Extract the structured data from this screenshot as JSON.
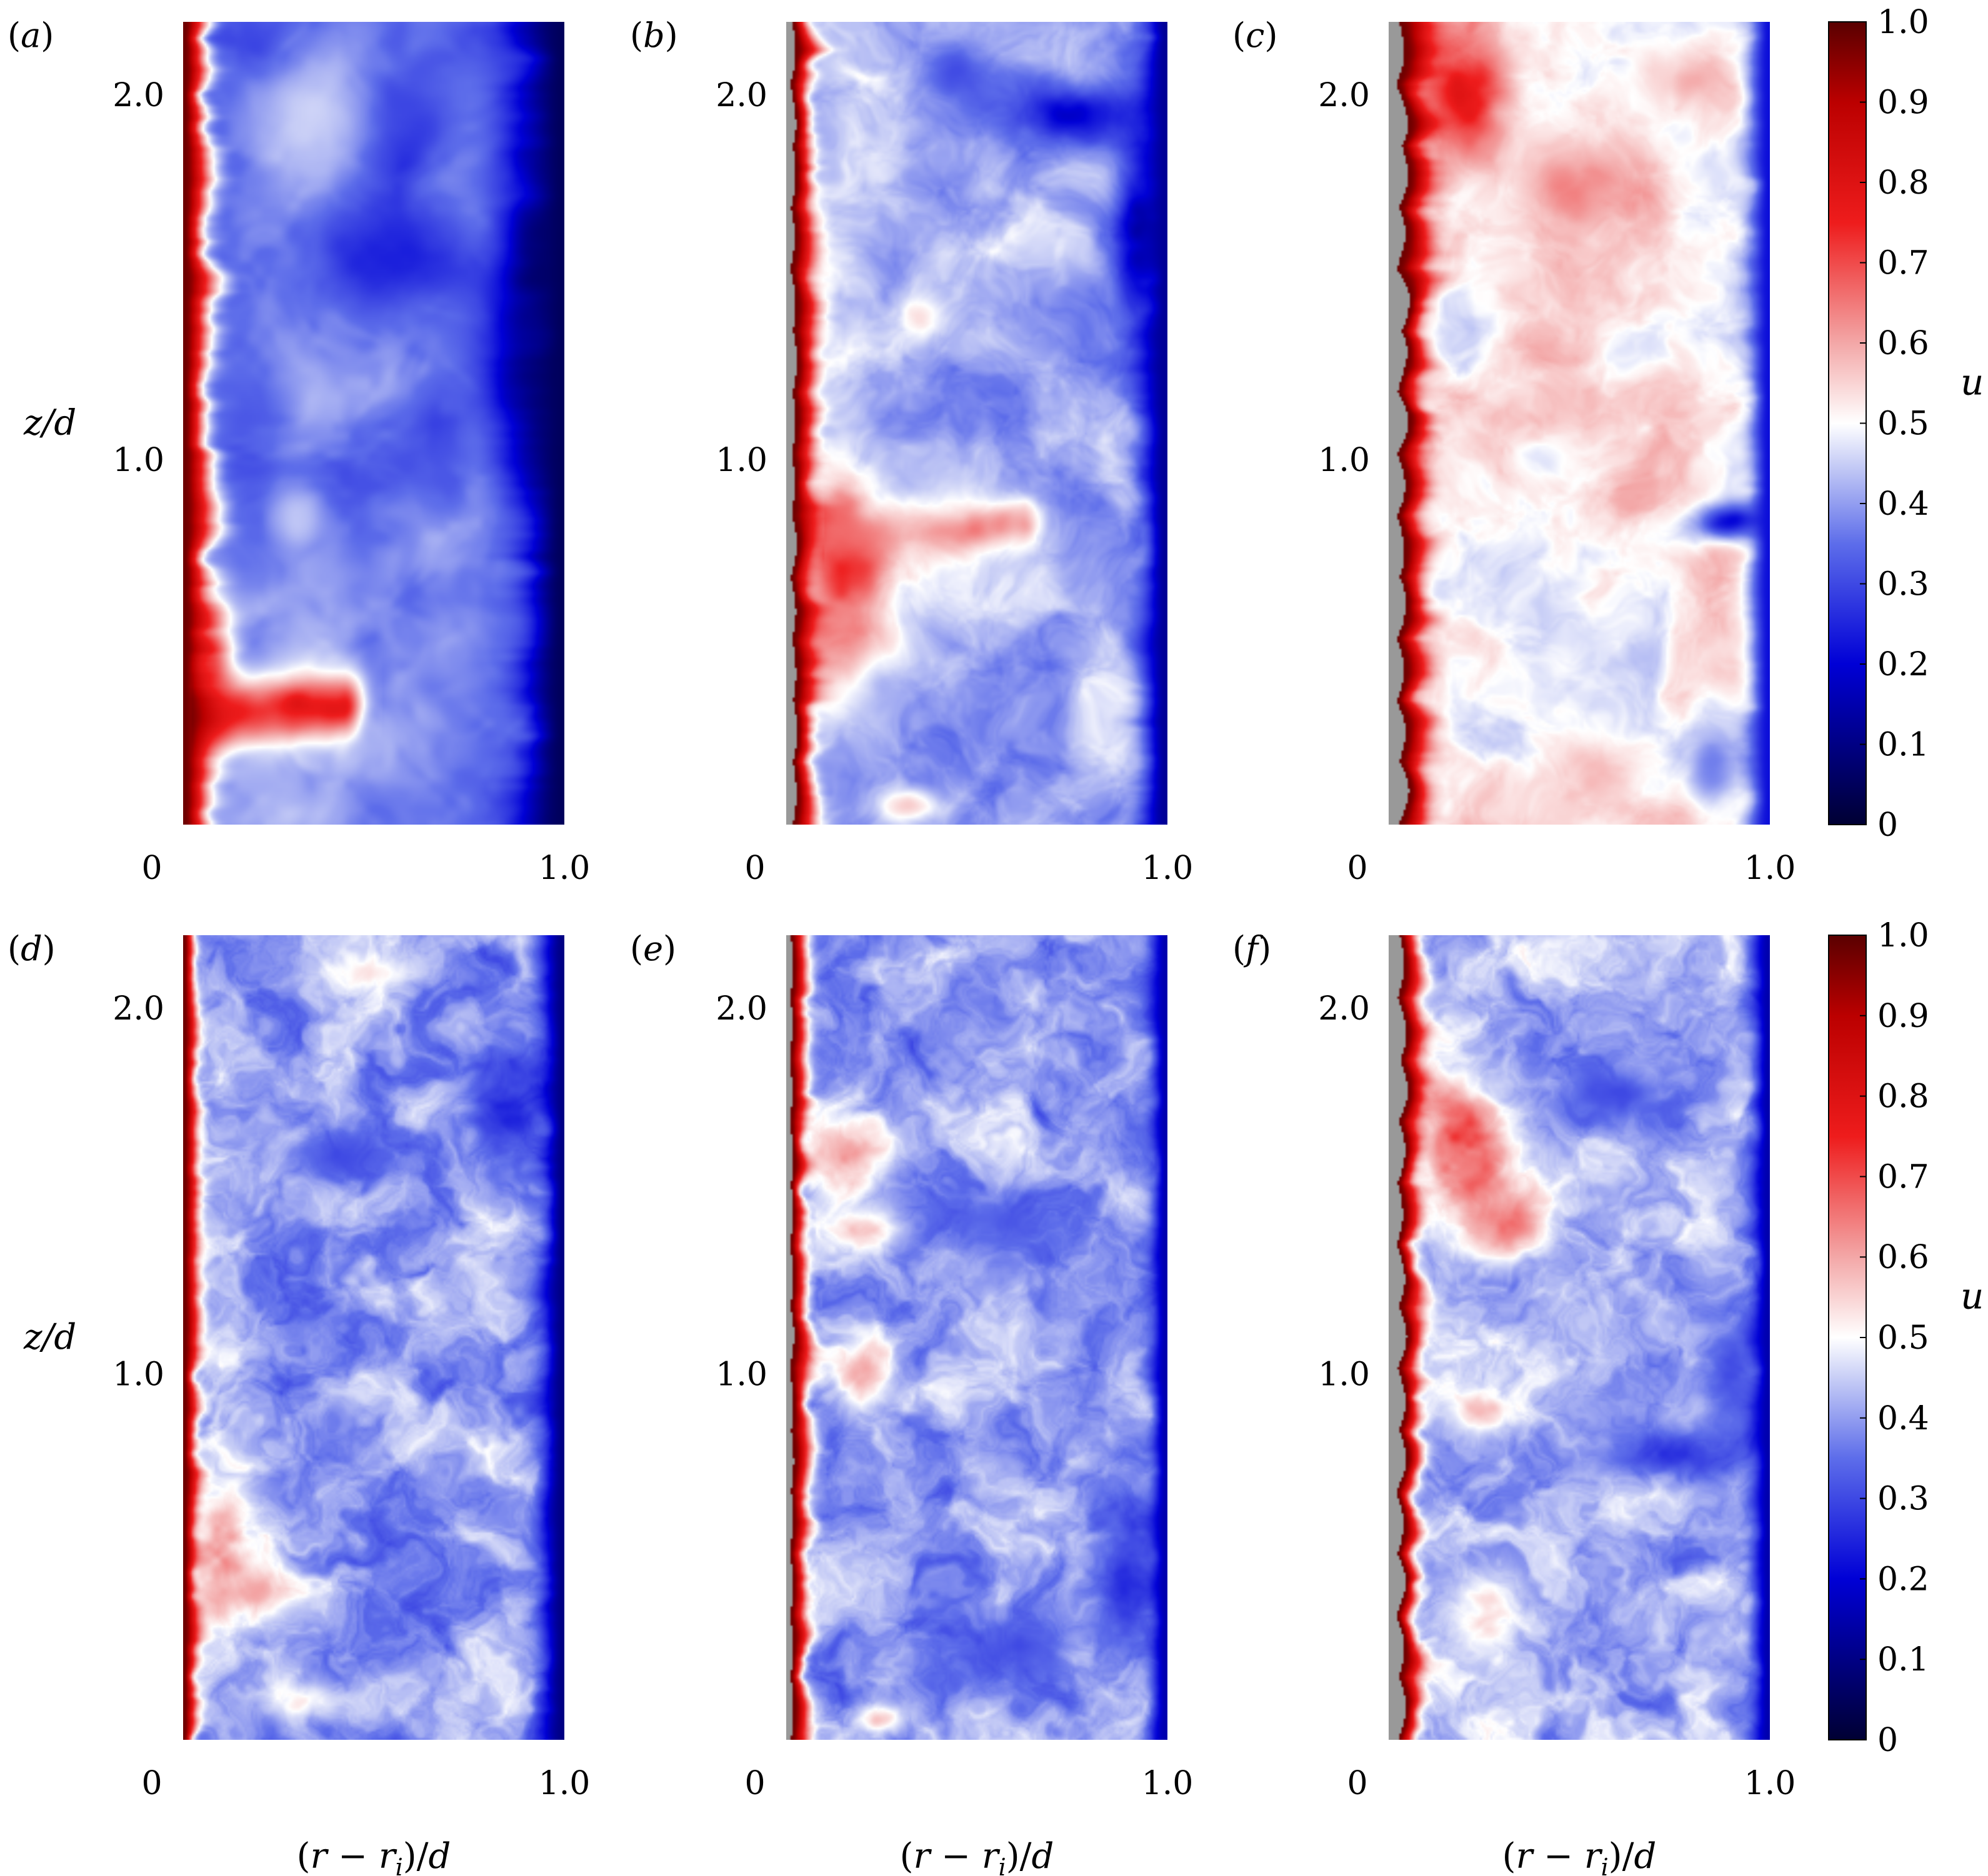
{
  "figure": {
    "colormap": {
      "stops": [
        {
          "v": 0.0,
          "color": "#000033"
        },
        {
          "v": 0.2,
          "color": "#0000d6"
        },
        {
          "v": 0.35,
          "color": "#5d6dea"
        },
        {
          "v": 0.45,
          "color": "#c8cef6"
        },
        {
          "v": 0.5,
          "color": "#ffffff"
        },
        {
          "v": 0.6,
          "color": "#f3a7a7"
        },
        {
          "v": 0.75,
          "color": "#ee1c1c"
        },
        {
          "v": 0.9,
          "color": "#bb0000"
        },
        {
          "v": 1.0,
          "color": "#5a0000"
        }
      ],
      "solid_color": "#999999"
    },
    "colorbar": {
      "label": "u",
      "tick_labels": [
        "0",
        "0.1",
        "0.2",
        "0.3",
        "0.4",
        "0.5",
        "0.6",
        "0.7",
        "0.8",
        "0.9",
        "1.0"
      ],
      "ticks": [
        0,
        0.1,
        0.2,
        0.3,
        0.4,
        0.5,
        0.6,
        0.7,
        0.8,
        0.9,
        1.0
      ]
    },
    "axis_text": {
      "xlabel": "(r − r",
      "xlabel_sub": "i",
      "xlabel_tail": ")/d",
      "ylabel": "z/d",
      "x_tick_labels": [
        "0",
        "1.0"
      ],
      "y_tick_labels": [
        "1.0",
        "2.0"
      ]
    }
  },
  "chart_data": [
    {
      "type": "heatmap",
      "panel": "(a)",
      "xlabel": "",
      "ylabel": "z/d",
      "x_ticks": [
        0,
        1.0
      ],
      "y_ticks": [
        1.0,
        2.0
      ],
      "xlim": [
        0,
        1.0
      ],
      "zlim": [
        0,
        2.2
      ],
      "clim": [
        0,
        1.0
      ],
      "inner_wall": "smooth",
      "inner_roughness": 0,
      "wall_red_thickness": 0.06,
      "bulk_mean": 0.36,
      "bulk_variation": 0.08,
      "outer_boundary_value": 0.05,
      "outer_layer_thickness": 0.1,
      "turbulence_detail": "low",
      "features": [
        {
          "kind": "jet",
          "z": 0.3,
          "from_x": 0.02,
          "to_x": 0.42,
          "value": 0.82,
          "width": 0.09
        },
        {
          "kind": "blob",
          "x": 0.92,
          "z": 1.45,
          "value": 0.08,
          "rx": 0.12,
          "rz": 0.6
        },
        {
          "kind": "blob",
          "x": 0.55,
          "z": 1.55,
          "value": 0.22,
          "rx": 0.22,
          "rz": 0.18
        },
        {
          "kind": "blob",
          "x": 0.35,
          "z": 2.0,
          "value": 0.47,
          "rx": 0.15,
          "rz": 0.2
        },
        {
          "kind": "blob",
          "x": 0.3,
          "z": 0.85,
          "value": 0.48,
          "rx": 0.08,
          "rz": 0.12
        },
        {
          "kind": "blob",
          "x": 0.08,
          "z": 0.45,
          "value": 0.72,
          "rx": 0.05,
          "rz": 0.2
        }
      ]
    },
    {
      "type": "heatmap",
      "panel": "(b)",
      "xlabel": "",
      "ylabel": "",
      "x_ticks": [
        0,
        1.0
      ],
      "y_ticks": [
        1.0,
        2.0
      ],
      "xlim": [
        0,
        1.0
      ],
      "zlim": [
        0,
        2.2
      ],
      "clim": [
        0,
        1.0
      ],
      "inner_wall": "rough",
      "inner_roughness": 0.022,
      "wall_red_thickness": 0.05,
      "bulk_mean": 0.42,
      "bulk_variation": 0.09,
      "outer_boundary_value": 0.12,
      "outer_layer_thickness": 0.06,
      "turbulence_detail": "medium",
      "features": [
        {
          "kind": "blob",
          "x": 0.15,
          "z": 0.7,
          "value": 0.78,
          "rx": 0.14,
          "rz": 0.35
        },
        {
          "kind": "jet",
          "z": 0.78,
          "from_x": 0.1,
          "to_x": 0.62,
          "value": 0.66,
          "width": 0.07
        },
        {
          "kind": "blob",
          "x": 0.75,
          "z": 1.95,
          "value": 0.18,
          "rx": 0.25,
          "rz": 0.09
        },
        {
          "kind": "blob",
          "x": 0.93,
          "z": 1.65,
          "value": 0.12,
          "rx": 0.07,
          "rz": 0.25
        },
        {
          "kind": "blob",
          "x": 0.45,
          "z": 2.05,
          "value": 0.3,
          "rx": 0.12,
          "rz": 0.1
        },
        {
          "kind": "blob",
          "x": 0.35,
          "z": 1.4,
          "value": 0.55,
          "rx": 0.06,
          "rz": 0.06
        },
        {
          "kind": "blob",
          "x": 0.32,
          "z": 0.05,
          "value": 0.58,
          "rx": 0.09,
          "rz": 0.05
        },
        {
          "kind": "blob",
          "x": 0.25,
          "z": 0.35,
          "value": 0.4,
          "rx": 0.1,
          "rz": 0.1
        }
      ]
    },
    {
      "type": "heatmap",
      "panel": "(c)",
      "xlabel": "",
      "ylabel": "",
      "x_ticks": [
        0,
        1.0
      ],
      "y_ticks": [
        1.0,
        2.0
      ],
      "xlim": [
        0,
        1.0
      ],
      "zlim": [
        0,
        2.2
      ],
      "clim": [
        0,
        1.0
      ],
      "inner_wall": "rough",
      "inner_roughness": 0.045,
      "wall_red_thickness": 0.06,
      "bulk_mean": 0.52,
      "bulk_variation": 0.08,
      "outer_boundary_value": 0.22,
      "outer_layer_thickness": 0.05,
      "turbulence_detail": "medium",
      "features": [
        {
          "kind": "blob",
          "x": 0.2,
          "z": 2.0,
          "value": 0.85,
          "rx": 0.12,
          "rz": 0.15
        },
        {
          "kind": "blob",
          "x": 0.5,
          "z": 1.75,
          "value": 0.68,
          "rx": 0.16,
          "rz": 0.12
        },
        {
          "kind": "blob",
          "x": 0.78,
          "z": 2.05,
          "value": 0.62,
          "rx": 0.1,
          "rz": 0.08
        },
        {
          "kind": "blob",
          "x": 0.9,
          "z": 0.83,
          "value": 0.2,
          "rx": 0.1,
          "rz": 0.05
        },
        {
          "kind": "blob",
          "x": 0.4,
          "z": 1.0,
          "value": 0.45,
          "rx": 0.08,
          "rz": 0.06
        },
        {
          "kind": "blob",
          "x": 0.55,
          "z": 0.15,
          "value": 0.62,
          "rx": 0.1,
          "rz": 0.08
        },
        {
          "kind": "blob",
          "x": 0.85,
          "z": 0.15,
          "value": 0.35,
          "rx": 0.06,
          "rz": 0.1
        }
      ]
    },
    {
      "type": "heatmap",
      "panel": "(d)",
      "xlabel": "(r − ri)/d",
      "ylabel": "z/d",
      "x_ticks": [
        0,
        1.0
      ],
      "y_ticks": [
        1.0,
        2.0
      ],
      "xlim": [
        0,
        1.0
      ],
      "zlim": [
        0,
        2.2
      ],
      "clim": [
        0,
        1.0
      ],
      "inner_wall": "smooth",
      "inner_roughness": 0,
      "wall_red_thickness": 0.03,
      "bulk_mean": 0.4,
      "bulk_variation": 0.09,
      "outer_boundary_value": 0.1,
      "outer_layer_thickness": 0.05,
      "turbulence_detail": "high",
      "features": [
        {
          "kind": "blob",
          "x": 0.1,
          "z": 0.5,
          "value": 0.7,
          "rx": 0.1,
          "rz": 0.2
        },
        {
          "kind": "blob",
          "x": 0.2,
          "z": 0.4,
          "value": 0.62,
          "rx": 0.1,
          "rz": 0.06
        },
        {
          "kind": "blob",
          "x": 0.85,
          "z": 1.75,
          "value": 0.22,
          "rx": 0.12,
          "rz": 0.15
        },
        {
          "kind": "blob",
          "x": 0.4,
          "z": 1.6,
          "value": 0.3,
          "rx": 0.15,
          "rz": 0.08
        },
        {
          "kind": "blob",
          "x": 0.5,
          "z": 2.1,
          "value": 0.55,
          "rx": 0.1,
          "rz": 0.04
        },
        {
          "kind": "blob",
          "x": 0.3,
          "z": 0.1,
          "value": 0.55,
          "rx": 0.1,
          "rz": 0.06
        }
      ]
    },
    {
      "type": "heatmap",
      "panel": "(e)",
      "xlabel": "(r − ri)/d",
      "ylabel": "",
      "x_ticks": [
        0,
        1.0
      ],
      "y_ticks": [
        1.0,
        2.0
      ],
      "xlim": [
        0,
        1.0
      ],
      "zlim": [
        0,
        2.2
      ],
      "clim": [
        0,
        1.0
      ],
      "inner_wall": "rough",
      "inner_roughness": 0.015,
      "wall_red_thickness": 0.035,
      "bulk_mean": 0.4,
      "bulk_variation": 0.09,
      "outer_boundary_value": 0.15,
      "outer_layer_thickness": 0.04,
      "turbulence_detail": "high",
      "features": [
        {
          "kind": "blob",
          "x": 0.15,
          "z": 1.6,
          "value": 0.66,
          "rx": 0.12,
          "rz": 0.12
        },
        {
          "kind": "blob",
          "x": 0.2,
          "z": 1.4,
          "value": 0.62,
          "rx": 0.1,
          "rz": 0.06
        },
        {
          "kind": "blob",
          "x": 0.2,
          "z": 1.0,
          "value": 0.62,
          "rx": 0.08,
          "rz": 0.1
        },
        {
          "kind": "blob",
          "x": 0.9,
          "z": 0.5,
          "value": 0.22,
          "rx": 0.08,
          "rz": 0.25
        },
        {
          "kind": "blob",
          "x": 0.55,
          "z": 1.4,
          "value": 0.32,
          "rx": 0.15,
          "rz": 0.1
        },
        {
          "kind": "blob",
          "x": 0.6,
          "z": 0.25,
          "value": 0.3,
          "rx": 0.15,
          "rz": 0.1
        },
        {
          "kind": "blob",
          "x": 0.25,
          "z": 0.05,
          "value": 0.6,
          "rx": 0.06,
          "rz": 0.04
        }
      ]
    },
    {
      "type": "heatmap",
      "panel": "(f)",
      "xlabel": "(r − ri)/d",
      "ylabel": "",
      "x_ticks": [
        0,
        1.0
      ],
      "y_ticks": [
        1.0,
        2.0
      ],
      "xlim": [
        0,
        1.0
      ],
      "zlim": [
        0,
        2.2
      ],
      "clim": [
        0,
        1.0
      ],
      "inner_wall": "rough",
      "inner_roughness": 0.04,
      "wall_red_thickness": 0.04,
      "bulk_mean": 0.42,
      "bulk_variation": 0.09,
      "outer_boundary_value": 0.15,
      "outer_layer_thickness": 0.04,
      "turbulence_detail": "high",
      "features": [
        {
          "kind": "blob",
          "x": 0.2,
          "z": 1.6,
          "value": 0.75,
          "rx": 0.14,
          "rz": 0.2
        },
        {
          "kind": "blob",
          "x": 0.3,
          "z": 1.4,
          "value": 0.7,
          "rx": 0.1,
          "rz": 0.1
        },
        {
          "kind": "blob",
          "x": 0.75,
          "z": 0.78,
          "value": 0.25,
          "rx": 0.22,
          "rz": 0.07
        },
        {
          "kind": "blob",
          "x": 0.6,
          "z": 1.75,
          "value": 0.3,
          "rx": 0.18,
          "rz": 0.1
        },
        {
          "kind": "blob",
          "x": 0.25,
          "z": 0.9,
          "value": 0.6,
          "rx": 0.08,
          "rz": 0.06
        },
        {
          "kind": "blob",
          "x": 0.25,
          "z": 0.35,
          "value": 0.58,
          "rx": 0.1,
          "rz": 0.1
        },
        {
          "kind": "blob",
          "x": 0.9,
          "z": 1.0,
          "value": 0.3,
          "rx": 0.08,
          "rz": 0.15
        }
      ]
    }
  ]
}
